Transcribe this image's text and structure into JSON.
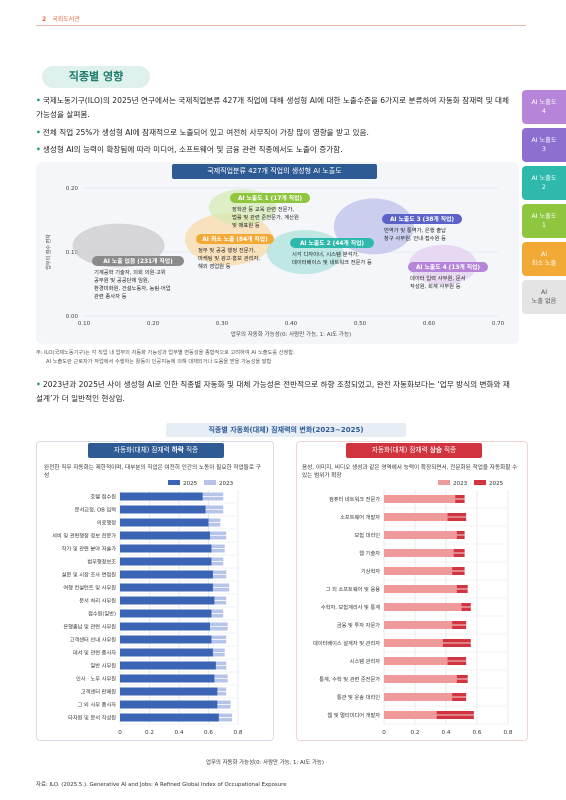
{
  "header": {
    "page_number": "2",
    "publication": "국회도서관"
  },
  "section_title": "직종별 영향",
  "bullets": [
    "국제노동기구(ILO)의 2025년 연구에서는 국제직업분류 427개 직업에 대해 생성형 AI에 대한 노출수준을 6가지로 분류하여 자동화 잠재력 및 대체 가능성을 살펴봄.",
    "전체 직업 25%가 생성형 AI에 잠재적으로 노출되어 있고 여전히 사무직이 가장 많이 영향을 받고 있음.",
    "생성형 AI의 능력이 확장됨에 따라 미디어, 소프트웨어 및 금융 관련 직종에서도 노출이 증가함."
  ],
  "side_tabs": [
    {
      "label": "AI 노출도",
      "num": "4",
      "color": "#b684d8"
    },
    {
      "label": "AI 노출도",
      "num": "3",
      "color": "#8d6fd0"
    },
    {
      "label": "AI 노출도",
      "num": "2",
      "color": "#2fb9ad"
    },
    {
      "label": "AI 노출도",
      "num": "1",
      "color": "#8ec63f"
    },
    {
      "label": "AI",
      "num": "최소 노출",
      "color": "#f2a936"
    },
    {
      "label": "AI",
      "num": "노출 없음",
      "color": "#e4e4e4"
    }
  ],
  "chart_data": [
    {
      "type": "scatter",
      "title": "국제직업분류 427개 직업의 생성형 AI 노출도",
      "xlabel": "업무의 자동화 가능성(0: 사람만 가능, 1: AI도 가능)",
      "ylabel": "업무의 점수 편차",
      "xlim": [
        0.1,
        0.7
      ],
      "ylim": [
        0.0,
        0.2
      ],
      "xticks": [
        "0.10",
        "0.20",
        "0.30",
        "0.40",
        "0.50",
        "0.60",
        "0.70"
      ],
      "yticks": [
        "0.00",
        "0.10",
        "0.20"
      ],
      "clusters": [
        {
          "name": "AI 노출 없음 (231개 직업)",
          "color": "#8a8a8a",
          "fill": "#c9c9c9",
          "x": 0.15,
          "y": 0.11,
          "desc": "기계공학 기술자, 의회 의원·고위 공무원 및 공공단체 임원, 환경미화원, 건설노동자, 농림·어업 관련 종사자 등"
        },
        {
          "name": "AI 최소 노출 (84개 직업)",
          "color": "#f2a936",
          "fill": "#f9d9a2",
          "x": 0.31,
          "y": 0.12,
          "desc": "정부 및 공공 행정 전문가, 마케팅 및 광고·홍보 관리자, 해외 영업원 등"
        },
        {
          "name": "AI 노출도 1 (17개 직업)",
          "color": "#8ec63f",
          "fill": "#d4ebb0",
          "x": 0.33,
          "y": 0.17,
          "desc": "장학관 등 교육 관련 전문가, 법률 및 관련 준전문가, 계산원 및 매표원 등"
        },
        {
          "name": "AI 노출도 2 (44개 직업)",
          "color": "#2fb9ad",
          "fill": "#a8e2dc",
          "x": 0.42,
          "y": 0.1,
          "desc": "시각 디자이너, 시스템 분석가, 데이터베이스 및 네트워크 전문가 등"
        },
        {
          "name": "AI 노출도 3 (38개 직업)",
          "color": "#5b63c9",
          "fill": "#b9bde8",
          "x": 0.52,
          "y": 0.14,
          "desc": "번역가 및 통역가, 은행 출납 창구 사무원, 안내·접수원 등"
        },
        {
          "name": "AI 노출도 4 (13개 직업)",
          "color": "#b684d8",
          "fill": "#e2cdf0",
          "x": 0.62,
          "y": 0.08,
          "desc": "데이터 입력 사무원, 문서 작성원, 회계 사무원 등"
        }
      ]
    },
    {
      "type": "bar",
      "title": "자동화(대체) 잠재력 하락 직종",
      "categories": [
        "호텔 접수원",
        "문서교정, OB 입력",
        "의료행정",
        "서비 및 관련행정 정보 전문가",
        "작가 및 관련 분야 저술가",
        "법무행정보조",
        "설문 및 시장 조사 면접원",
        "여행 컨설턴트 및 사무원",
        "문서 처리 사무원",
        "접수원(일반)",
        "은행출납 및 관련 사무원",
        "고객센터 안내 사무원",
        "데서 및 관련 종사자",
        "일반 사무원",
        "인사 · 노무 사무원",
        "고객센터 판매원",
        "그 외 사무 종사자",
        "타자원 및 문서 작성원"
      ],
      "series": [
        {
          "name": "2025",
          "color": "#3b64b5",
          "values": [
            0.56,
            0.58,
            0.6,
            0.61,
            0.62,
            0.62,
            0.63,
            0.63,
            0.64,
            0.62,
            0.61,
            0.62,
            0.63,
            0.65,
            0.64,
            0.66,
            0.66,
            0.67
          ]
        },
        {
          "name": "2023",
          "color": "#b6c4ea",
          "values": [
            0.7,
            0.7,
            0.68,
            0.72,
            0.71,
            0.7,
            0.72,
            0.74,
            0.72,
            0.7,
            0.73,
            0.72,
            0.71,
            0.72,
            0.73,
            0.72,
            0.75,
            0.76
          ]
        }
      ],
      "xlim": [
        0,
        0.8
      ],
      "xticks": [
        "0",
        "0.2",
        "0.4",
        "0.6",
        "0.8"
      ]
    },
    {
      "type": "bar",
      "title": "자동화(대체) 잠재력 상승 직종",
      "categories": [
        "컴퓨터 네트워크 전문가",
        "소프트웨어 개발자",
        "보험 대리인",
        "웹 기술자",
        "기상학자",
        "그 외 소프트웨어 및 응용",
        "수학자, 보험계리사 및 통계",
        "금융 및 투자 자문가",
        "데이터베이스 설계자 및 관리자",
        "시스템 관리자",
        "통계, 수학 및 관련 준전문가",
        "통관 및 운송 대리인",
        "웹 및 멀티미디어 개발자"
      ],
      "series": [
        {
          "name": "2023",
          "color": "#ef9a9a",
          "values": [
            0.46,
            0.41,
            0.47,
            0.45,
            0.44,
            0.47,
            0.5,
            0.44,
            0.38,
            0.41,
            0.47,
            0.44,
            0.34
          ]
        },
        {
          "name": "2025",
          "color": "#d2343f",
          "values": [
            0.52,
            0.53,
            0.52,
            0.52,
            0.52,
            0.54,
            0.56,
            0.53,
            0.56,
            0.53,
            0.54,
            0.53,
            0.58
          ]
        }
      ],
      "xlim": [
        0,
        0.8
      ],
      "xticks": [
        "0",
        "0.2",
        "0.4",
        "0.6",
        "0.8"
      ]
    }
  ],
  "scatter_notes": [
    "주: ILO(국제노동기구)는 각 직업 내 업무의 자동화 가능성과 업무별 변동성을 종합적으로 고려하여 AI 노출도를 산정함.",
    "AI 노출도란 근로자가 작업에서 수행하는 활동이 인공지능에 의해 대체되거나 도움을 받을 가능성을 말함"
  ],
  "bullet2": "2023년과 2025년 사이 생성형 AI로 인한 직종별 자동화 및 대체 가능성은 전반적으로 하향 조정되었고, 완전 자동화보다는 ‘업무 방식의 변화와 재설계’가 더 일반적인 현상임.",
  "chart2_title": "직종별 자동화(대체) 잠재력의 변화(2023~2025)",
  "left_tab": {
    "pre": "자동화(대체) 잠재력 ",
    "bold": "하락",
    "post": " 직종"
  },
  "right_tab": {
    "pre": "자동화(대체) 잠재력 ",
    "bold": "상승",
    "post": " 직종"
  },
  "left_desc": "완전한 직무 자동화는 제한적이며, 대부분의 직업은 여전히 인간의 노동이 필요한 작업들로 구성",
  "right_desc": "음성, 이미지, 비디오 생성과 같은 영역에서 능력이 확장되면서, 전문화된 작업을 자동화할 수 있는 범위가 확장",
  "bar_xlabel": "업무의 자동화 가능성(0: 사람만 가능, 1: AI도 가능)",
  "source": "자료: ILO. (2025.5.). Generative AI and Jobs: A Refined Global Index of Occupational Exposure"
}
